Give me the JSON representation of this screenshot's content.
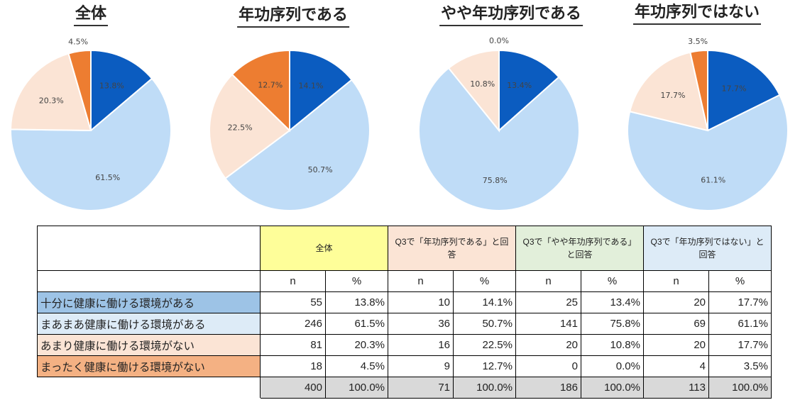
{
  "charts": [
    {
      "title": "全体",
      "labels": [
        "13.8%",
        "61.5%",
        "20.3%",
        "4.5%"
      ],
      "values": [
        13.8,
        61.5,
        20.3,
        4.5
      ]
    },
    {
      "title": "年功序列である",
      "labels": [
        "14.1%",
        "50.7%",
        "22.5%",
        "12.7%"
      ],
      "values": [
        14.1,
        50.7,
        22.5,
        12.7
      ]
    },
    {
      "title": "やや年功序列である",
      "labels": [
        "13.4%",
        "75.8%",
        "10.8%",
        "0.0%"
      ],
      "values": [
        13.4,
        75.8,
        10.8,
        0.0
      ]
    },
    {
      "title": "年功序列ではない",
      "labels": [
        "17.7%",
        "61.1%",
        "17.7%",
        "3.5%"
      ],
      "values": [
        17.7,
        61.1,
        17.7,
        3.5
      ]
    }
  ],
  "colors": [
    "#0b5cc0",
    "#bfdcf7",
    "#fbe4d5",
    "#ed7d31"
  ],
  "table": {
    "groups": [
      "全体",
      "Q3で「年功序列である」と回答",
      "Q3で「やや年功序列である」と回答",
      "Q3で「年功序列ではない」と回答"
    ],
    "group_colors": [
      "#fefe99",
      "#fbe4d5",
      "#e2efda",
      "#ddebf7"
    ],
    "subheaders": [
      "n",
      "%"
    ],
    "rows": [
      {
        "label": "十分に健康に働ける環境がある",
        "color": "#9dc3e6",
        "cells": [
          "55",
          "13.8%",
          "10",
          "14.1%",
          "25",
          "13.4%",
          "20",
          "17.7%"
        ]
      },
      {
        "label": "まあまあ健康に働ける環境がある",
        "color": "#ddebf7",
        "cells": [
          "246",
          "61.5%",
          "36",
          "50.7%",
          "141",
          "75.8%",
          "69",
          "61.1%"
        ]
      },
      {
        "label": "あまり健康に働ける環境がない",
        "color": "#fbe4d5",
        "cells": [
          "81",
          "20.3%",
          "16",
          "22.5%",
          "20",
          "10.8%",
          "20",
          "17.7%"
        ]
      },
      {
        "label": "まったく健康に働ける環境がない",
        "color": "#f4b183",
        "cells": [
          "18",
          "4.5%",
          "9",
          "12.7%",
          "0",
          "0.0%",
          "4",
          "3.5%"
        ]
      }
    ],
    "total": [
      "400",
      "100.0%",
      "71",
      "100.0%",
      "186",
      "100.0%",
      "113",
      "100.0%"
    ],
    "total_color": "#d9d9d9"
  },
  "chart_data": [
    {
      "type": "pie",
      "title": "全体",
      "categories": [
        "十分に健康に働ける環境がある",
        "まあまあ健康に働ける環境がある",
        "あまり健康に働ける環境がない",
        "まったく健康に働ける環境がない"
      ],
      "values": [
        13.8,
        61.5,
        20.3,
        4.5
      ],
      "n": [
        55,
        246,
        81,
        18
      ],
      "total_n": 400
    },
    {
      "type": "pie",
      "title": "年功序列である",
      "categories": [
        "十分に健康に働ける環境がある",
        "まあまあ健康に働ける環境がある",
        "あまり健康に働ける環境がない",
        "まったく健康に働ける環境がない"
      ],
      "values": [
        14.1,
        50.7,
        22.5,
        12.7
      ],
      "n": [
        10,
        36,
        16,
        9
      ],
      "total_n": 71
    },
    {
      "type": "pie",
      "title": "やや年功序列である",
      "categories": [
        "十分に健康に働ける環境がある",
        "まあまあ健康に働ける環境がある",
        "あまり健康に働ける環境がない",
        "まったく健康に働ける環境がない"
      ],
      "values": [
        13.4,
        75.8,
        10.8,
        0.0
      ],
      "n": [
        25,
        141,
        20,
        0
      ],
      "total_n": 186
    },
    {
      "type": "pie",
      "title": "年功序列ではない",
      "categories": [
        "十分に健康に働ける環境がある",
        "まあまあ健康に働ける環境がある",
        "あまり健康に働ける環境がない",
        "まったく健康に働ける環境がない"
      ],
      "values": [
        17.7,
        61.1,
        17.7,
        3.5
      ],
      "n": [
        20,
        69,
        20,
        4
      ],
      "total_n": 113
    }
  ]
}
